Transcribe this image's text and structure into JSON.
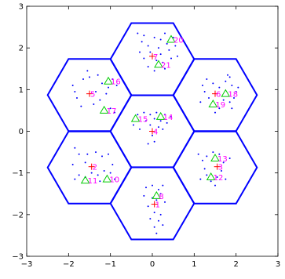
{
  "chart_data": {
    "type": "scatter",
    "title": "",
    "xlabel": "",
    "ylabel": "",
    "xlim": [
      -3,
      3
    ],
    "ylim": [
      -3,
      3
    ],
    "xticks": [
      -3,
      -2,
      -1,
      0,
      1,
      2,
      3
    ],
    "yticks": [
      -3,
      -2,
      -1,
      0,
      1,
      2,
      3
    ],
    "grid": false,
    "colors": {
      "cells": "#0000ff",
      "points": "#0000ff",
      "base_stations": "#ff0000",
      "users": "#00cc00",
      "labels": "#ff00ff"
    },
    "cells": [
      {
        "cx": 0,
        "cy": 0
      },
      {
        "cx": 0,
        "cy": 1.73
      },
      {
        "cx": 0,
        "cy": -1.73
      },
      {
        "cx": 1.5,
        "cy": 0.87
      },
      {
        "cx": 1.5,
        "cy": -0.87
      },
      {
        "cx": -1.5,
        "cy": 0.87
      },
      {
        "cx": -1.5,
        "cy": -0.87
      }
    ],
    "hex_radius": 1,
    "base_stations": [
      {
        "label": "1",
        "x": 0.05,
        "y": -1.75
      },
      {
        "label": "2",
        "x": -1.45,
        "y": -0.85
      },
      {
        "label": "3",
        "x": 1.55,
        "y": -0.85
      },
      {
        "label": "4",
        "x": 0.0,
        "y": 0.0
      },
      {
        "label": "5",
        "x": -1.5,
        "y": 0.9
      },
      {
        "label": "6",
        "x": 1.5,
        "y": 0.9
      },
      {
        "label": "7",
        "x": 0.0,
        "y": 1.8
      }
    ],
    "users": [
      {
        "label": "8",
        "x": 0.1,
        "y": -1.55
      },
      {
        "label": "10",
        "x": -1.08,
        "y": -1.15
      },
      {
        "label": "11",
        "x": -1.6,
        "y": -1.18
      },
      {
        "label": "12",
        "x": 1.4,
        "y": -1.1
      },
      {
        "label": "13",
        "x": 1.5,
        "y": -0.65
      },
      {
        "label": "14",
        "x": 0.2,
        "y": 0.35
      },
      {
        "label": "15",
        "x": -0.4,
        "y": 0.3
      },
      {
        "label": "16",
        "x": -1.05,
        "y": 1.2
      },
      {
        "label": "17",
        "x": -1.15,
        "y": 0.5
      },
      {
        "label": "18",
        "x": 1.75,
        "y": 0.9
      },
      {
        "label": "19",
        "x": 1.45,
        "y": 0.65
      },
      {
        "label": "20",
        "x": 0.45,
        "y": 2.2
      },
      {
        "label": "21",
        "x": 0.15,
        "y": 1.6
      }
    ],
    "points": [
      [
        -0.35,
        2.35
      ],
      [
        -0.2,
        2.3
      ],
      [
        -0.25,
        2.15
      ],
      [
        -0.1,
        2.05
      ],
      [
        0.05,
        2.25
      ],
      [
        0.2,
        2.2
      ],
      [
        0.3,
        2.35
      ],
      [
        0.35,
        2.1
      ],
      [
        0.5,
        2.25
      ],
      [
        0.55,
        2.05
      ],
      [
        0.4,
        1.95
      ],
      [
        0.2,
        1.85
      ],
      [
        0.1,
        1.7
      ],
      [
        0.25,
        1.65
      ],
      [
        0.3,
        1.5
      ],
      [
        0.05,
        1.45
      ],
      [
        -0.1,
        1.55
      ],
      [
        -0.2,
        1.75
      ],
      [
        -0.05,
        1.9
      ],
      [
        0.15,
        2.0
      ],
      [
        0.45,
        1.75
      ],
      [
        0.6,
        1.8
      ],
      [
        -0.3,
        1.9
      ],
      [
        -1.9,
        1.1
      ],
      [
        -1.85,
        0.95
      ],
      [
        -1.8,
        0.8
      ],
      [
        -1.65,
        1.25
      ],
      [
        -1.5,
        1.3
      ],
      [
        -1.3,
        1.35
      ],
      [
        -1.2,
        1.15
      ],
      [
        -1.05,
        1.05
      ],
      [
        -0.95,
        1.25
      ],
      [
        -0.85,
        1.1
      ],
      [
        -1.35,
        0.95
      ],
      [
        -1.1,
        0.9
      ],
      [
        -1.25,
        0.75
      ],
      [
        -1.4,
        0.65
      ],
      [
        -1.7,
        0.6
      ],
      [
        -1.0,
        0.55
      ],
      [
        -0.9,
        0.45
      ],
      [
        -1.55,
        1.45
      ],
      [
        1.2,
        1.1
      ],
      [
        1.3,
        1.25
      ],
      [
        1.45,
        1.15
      ],
      [
        1.6,
        1.05
      ],
      [
        1.75,
        1.2
      ],
      [
        1.85,
        1.3
      ],
      [
        1.9,
        1.1
      ],
      [
        2.0,
        0.95
      ],
      [
        1.95,
        0.8
      ],
      [
        1.85,
        0.7
      ],
      [
        1.7,
        0.75
      ],
      [
        1.6,
        0.55
      ],
      [
        1.35,
        0.8
      ],
      [
        1.25,
        0.95
      ],
      [
        1.15,
        0.7
      ],
      [
        1.9,
        0.55
      ],
      [
        1.8,
        1.35
      ],
      [
        1.5,
        0.45
      ],
      [
        2.05,
        1.05
      ],
      [
        -0.45,
        0.15
      ],
      [
        -0.35,
        0.4
      ],
      [
        -0.2,
        0.45
      ],
      [
        -0.15,
        0.25
      ],
      [
        -0.05,
        0.4
      ],
      [
        0.05,
        0.3
      ],
      [
        0.1,
        0.45
      ],
      [
        0.2,
        0.25
      ],
      [
        0.3,
        0.4
      ],
      [
        0.35,
        0.2
      ],
      [
        0.45,
        0.35
      ],
      [
        0.15,
        0.1
      ],
      [
        -0.05,
        0.15
      ],
      [
        0.0,
        -0.1
      ],
      [
        0.05,
        -0.25
      ],
      [
        -0.1,
        -0.3
      ],
      [
        0.25,
        0.05
      ],
      [
        -0.3,
        0.05
      ],
      [
        -1.85,
        -0.4
      ],
      [
        -1.75,
        -0.55
      ],
      [
        -1.55,
        -0.55
      ],
      [
        -1.35,
        -0.5
      ],
      [
        -1.2,
        -0.6
      ],
      [
        -1.05,
        -0.55
      ],
      [
        -0.95,
        -0.8
      ],
      [
        -1.0,
        -1.0
      ],
      [
        -1.15,
        -0.95
      ],
      [
        -1.3,
        -1.05
      ],
      [
        -1.45,
        -1.0
      ],
      [
        -1.6,
        -1.1
      ],
      [
        -1.75,
        -1.05
      ],
      [
        -1.85,
        -1.15
      ],
      [
        -1.9,
        -0.8
      ],
      [
        -1.25,
        -1.2
      ],
      [
        -0.9,
        -1.15
      ],
      [
        -1.6,
        -0.75
      ],
      [
        1.1,
        -0.55
      ],
      [
        1.2,
        -0.7
      ],
      [
        1.3,
        -0.6
      ],
      [
        1.45,
        -0.5
      ],
      [
        1.6,
        -0.55
      ],
      [
        1.7,
        -0.75
      ],
      [
        1.65,
        -0.95
      ],
      [
        1.55,
        -1.1
      ],
      [
        1.4,
        -1.2
      ],
      [
        1.3,
        -1.05
      ],
      [
        1.25,
        -0.9
      ],
      [
        1.75,
        -1.15
      ],
      [
        1.85,
        -0.65
      ],
      [
        1.15,
        -1.15
      ],
      [
        1.5,
        -1.3
      ],
      [
        -0.15,
        -1.35
      ],
      [
        0.0,
        -1.3
      ],
      [
        0.15,
        -1.4
      ],
      [
        0.2,
        -1.5
      ],
      [
        0.1,
        -1.65
      ],
      [
        0.0,
        -1.6
      ],
      [
        -0.1,
        -1.8
      ],
      [
        0.05,
        -1.95
      ],
      [
        0.2,
        -2.0
      ],
      [
        0.15,
        -2.15
      ],
      [
        0.25,
        -2.25
      ],
      [
        0.05,
        -2.3
      ],
      [
        -0.05,
        -2.1
      ],
      [
        0.3,
        -1.7
      ],
      [
        -0.2,
        -1.55
      ],
      [
        0.25,
        -1.3
      ],
      [
        0.1,
        -2.45
      ]
    ]
  }
}
